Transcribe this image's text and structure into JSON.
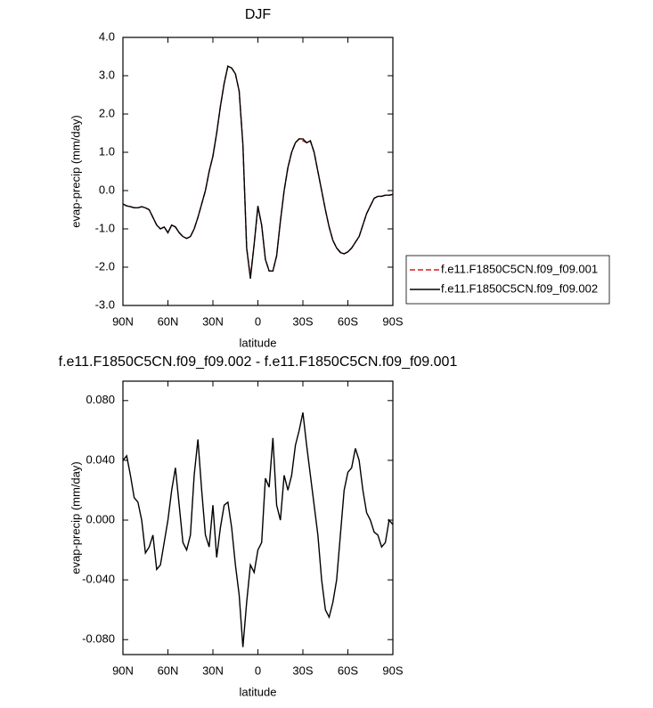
{
  "chart_data": [
    {
      "type": "line",
      "title": "DJF",
      "xlabel": "latitude",
      "ylabel": "evap-precip (mm/day)",
      "x": [
        90,
        87.5,
        85,
        82.5,
        80,
        77.5,
        75,
        72.5,
        70,
        67.5,
        65,
        62.5,
        60,
        57.5,
        55,
        52.5,
        50,
        47.5,
        45,
        42.5,
        40,
        37.5,
        35,
        32.5,
        30,
        27.5,
        25,
        22.5,
        20,
        17.5,
        15,
        12.5,
        10,
        7.5,
        5,
        2.5,
        0,
        -2.5,
        -5,
        -7.5,
        -10,
        -12.5,
        -15,
        -17.5,
        -20,
        -22.5,
        -25,
        -27.5,
        -30,
        -32.5,
        -35,
        -37.5,
        -40,
        -42.5,
        -45,
        -47.5,
        -50,
        -52.5,
        -55,
        -57.5,
        -60,
        -62.5,
        -65,
        -67.5,
        -70,
        -72.5,
        -75,
        -77.5,
        -80,
        -82.5,
        -85,
        -87.5,
        -90
      ],
      "xlim": [
        90,
        -90
      ],
      "xticks": [
        {
          "value": 90,
          "label": "90N"
        },
        {
          "value": 60,
          "label": "60N"
        },
        {
          "value": 30,
          "label": "30N"
        },
        0,
        {
          "value": -30,
          "label": "30S"
        },
        {
          "value": -60,
          "label": "60S"
        },
        {
          "value": -90,
          "label": "90S"
        }
      ],
      "ylim": [
        -3,
        4
      ],
      "yticks": [
        {
          "value": 4,
          "label": "4.0"
        },
        {
          "value": 3,
          "label": "3.0"
        },
        {
          "value": 2,
          "label": "2.0"
        },
        {
          "value": 1,
          "label": "1.0"
        },
        {
          "value": 0,
          "label": "0.0"
        },
        {
          "value": -1,
          "label": "-1.0"
        },
        {
          "value": -2,
          "label": "-2.0"
        },
        {
          "value": -3,
          "label": "-3.0"
        }
      ],
      "legend": "right",
      "series": [
        {
          "name": "f.e11.F1850C5CN.f09_f09.001",
          "color": "#e0191b",
          "dash": "dashed",
          "values": [
            -0.35,
            -0.4,
            -0.42,
            -0.45,
            -0.45,
            -0.42,
            -0.45,
            -0.5,
            -0.7,
            -0.9,
            -1.0,
            -0.95,
            -1.1,
            -0.9,
            -0.95,
            -1.1,
            -1.2,
            -1.25,
            -1.2,
            -1.0,
            -0.7,
            -0.35,
            0.0,
            0.5,
            0.9,
            1.5,
            2.2,
            2.8,
            3.25,
            3.2,
            3.05,
            2.6,
            1.2,
            -1.5,
            -2.25,
            -1.4,
            -0.45,
            -0.9,
            -1.8,
            -2.1,
            -2.1,
            -1.7,
            -0.8,
            0.0,
            0.6,
            1.0,
            1.25,
            1.35,
            1.3,
            1.25,
            1.3,
            1.0,
            0.5,
            0.0,
            -0.5,
            -0.95,
            -1.3,
            -1.5,
            -1.6,
            -1.65,
            -1.6,
            -1.5,
            -1.35,
            -1.2,
            -0.9,
            -0.6,
            -0.4,
            -0.2,
            -0.15,
            -0.15,
            -0.12,
            -0.12,
            -0.1
          ]
        },
        {
          "name": "f.e11.F1850C5CN.f09_f09.002",
          "color": "#000000",
          "dash": "solid",
          "values": [
            -0.35,
            -0.4,
            -0.42,
            -0.45,
            -0.45,
            -0.42,
            -0.45,
            -0.5,
            -0.7,
            -0.9,
            -1.0,
            -0.95,
            -1.1,
            -0.9,
            -0.95,
            -1.1,
            -1.2,
            -1.25,
            -1.2,
            -1.0,
            -0.7,
            -0.35,
            0.0,
            0.5,
            0.9,
            1.5,
            2.2,
            2.8,
            3.25,
            3.2,
            3.05,
            2.6,
            1.2,
            -1.5,
            -2.3,
            -1.4,
            -0.4,
            -0.9,
            -1.8,
            -2.1,
            -2.1,
            -1.7,
            -0.8,
            0.0,
            0.6,
            1.0,
            1.25,
            1.35,
            1.35,
            1.25,
            1.3,
            1.0,
            0.5,
            0.0,
            -0.5,
            -0.95,
            -1.3,
            -1.5,
            -1.62,
            -1.65,
            -1.6,
            -1.5,
            -1.35,
            -1.2,
            -0.9,
            -0.6,
            -0.4,
            -0.2,
            -0.15,
            -0.15,
            -0.12,
            -0.12,
            -0.1
          ]
        }
      ]
    },
    {
      "type": "line",
      "title": "f.e11.F1850C5CN.f09_f09.002 - f.e11.F1850C5CN.f09_f09.001",
      "xlabel": "latitude",
      "ylabel": "evap-precip (mm/day)",
      "x": [
        90,
        87.5,
        85,
        82.5,
        80,
        77.5,
        75,
        72.5,
        70,
        67.5,
        65,
        62.5,
        60,
        57.5,
        55,
        52.5,
        50,
        47.5,
        45,
        42.5,
        40,
        37.5,
        35,
        32.5,
        30,
        27.5,
        25,
        22.5,
        20,
        17.5,
        15,
        12.5,
        10,
        7.5,
        5,
        2.5,
        0,
        -2.5,
        -5,
        -7.5,
        -10,
        -12.5,
        -15,
        -17.5,
        -20,
        -22.5,
        -25,
        -27.5,
        -30,
        -32.5,
        -35,
        -37.5,
        -40,
        -42.5,
        -45,
        -47.5,
        -50,
        -52.5,
        -55,
        -57.5,
        -60,
        -62.5,
        -65,
        -67.5,
        -70,
        -72.5,
        -75,
        -77.5,
        -80,
        -82.5,
        -85,
        -87.5,
        -90
      ],
      "xlim": [
        90,
        -90
      ],
      "xticks": [
        {
          "value": 90,
          "label": "90N"
        },
        {
          "value": 60,
          "label": "60N"
        },
        {
          "value": 30,
          "label": "30N"
        },
        0,
        {
          "value": -30,
          "label": "30S"
        },
        {
          "value": -60,
          "label": "60S"
        },
        {
          "value": -90,
          "label": "90S"
        }
      ],
      "ylim": [
        -0.09,
        0.093
      ],
      "yticks": [
        {
          "value": 0.08,
          "label": "0.080"
        },
        {
          "value": 0.04,
          "label": "0.040"
        },
        {
          "value": 0,
          "label": "0.000"
        },
        {
          "value": -0.04,
          "label": "-0.040"
        },
        {
          "value": -0.08,
          "label": "-0.080"
        }
      ],
      "color": "#000000",
      "values": [
        0.04,
        0.043,
        0.03,
        0.015,
        0.012,
        0,
        -0.022,
        -0.018,
        -0.01,
        -0.033,
        -0.03,
        -0.015,
        0,
        0.02,
        0.035,
        0.01,
        -0.015,
        -0.02,
        -0.01,
        0.03,
        0.054,
        0.02,
        -0.01,
        -0.018,
        0.01,
        -0.025,
        -0.005,
        0.01,
        0.012,
        -0.005,
        -0.03,
        -0.05,
        -0.085,
        -0.055,
        -0.03,
        -0.035,
        -0.02,
        -0.015,
        0.028,
        0.022,
        0.055,
        0.01,
        0,
        0.03,
        0.02,
        0.03,
        0.05,
        0.06,
        0.072,
        0.05,
        0.03,
        0.01,
        -0.01,
        -0.04,
        -0.06,
        -0.065,
        -0.055,
        -0.04,
        -0.01,
        0.02,
        0.032,
        0.035,
        0.048,
        0.04,
        0.02,
        0.005,
        0,
        -0.008,
        -0.01,
        -0.018,
        -0.015,
        0,
        -0.003
      ]
    }
  ]
}
